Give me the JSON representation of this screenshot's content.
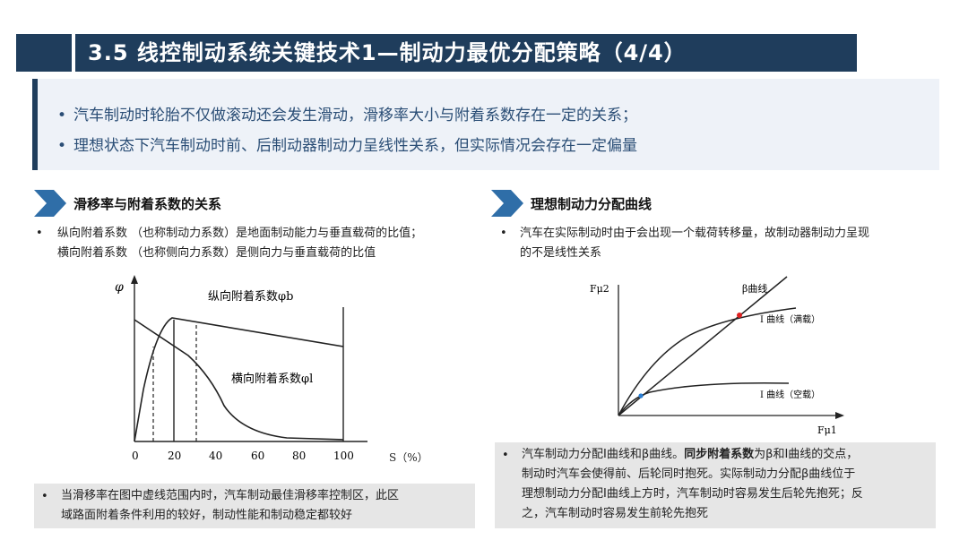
{
  "header": {
    "title": "3.5  线控制动系统关键技术1—制动力最优分配策略（4/4）"
  },
  "intro": {
    "items": [
      "汽车制动时轮胎不仅做滚动还会发生滑动，滑移率大小与附着系数存在一定的关系；",
      "理想状态下汽车制动时前、后制动器制动力呈线性关系，但实际情况会存在一定偏量"
    ]
  },
  "left": {
    "heading": "滑移率与附着系数的关系",
    "bullet_line1": "纵向附着系数 （也称制动力系数）是地面制动能力与垂直载荷的比值；",
    "bullet_line2": "横向附着系数 （也称侧向力系数）是侧向力与垂直载荷的比值",
    "chart": {
      "y_axis_label": "φ",
      "x_axis_label": "S（%）",
      "x_ticks": [
        "0",
        "20",
        "40",
        "60",
        "80",
        "100"
      ],
      "curve_longitudinal_label": "纵向附着系数φb",
      "curve_lateral_label": "横向附着系数φl"
    },
    "note_line1": "当滑移率在图中虚线范围内时，汽车制动最佳滑移率控制区，此区",
    "note_line2": "域路面附着条件利用的较好，制动性能和制动稳定都较好"
  },
  "right": {
    "heading": "理想制动力分配曲线",
    "bullet_line1": "汽车在实际制动时由于会出现一个载荷转移量，故制动器制动力呈现",
    "bullet_line2": "的不是线性关系",
    "chart": {
      "y_axis_label": "Fμ2",
      "x_axis_label": "Fμ1",
      "beta_label": "β曲线",
      "i_full_label": "I 曲线（满载）",
      "i_empty_label": "I 曲线（空载）",
      "colors": {
        "full_point": "#e02020",
        "empty_point": "#2a7fd4"
      }
    },
    "note_line1_a": "汽车制动力分配I曲线和β曲线。",
    "note_line1_b": "同步附着系数",
    "note_line1_c": "为β和I曲线的交点，",
    "note_line2": "制动时汽车会使得前、后轮同时抱死。实际制动力分配β曲线位于",
    "note_line3": "理想制动力分配I曲线上方时，汽车制动时容易发生后轮先抱死；反",
    "note_line4": "之，汽车制动时容易发生前轮先抱死"
  }
}
